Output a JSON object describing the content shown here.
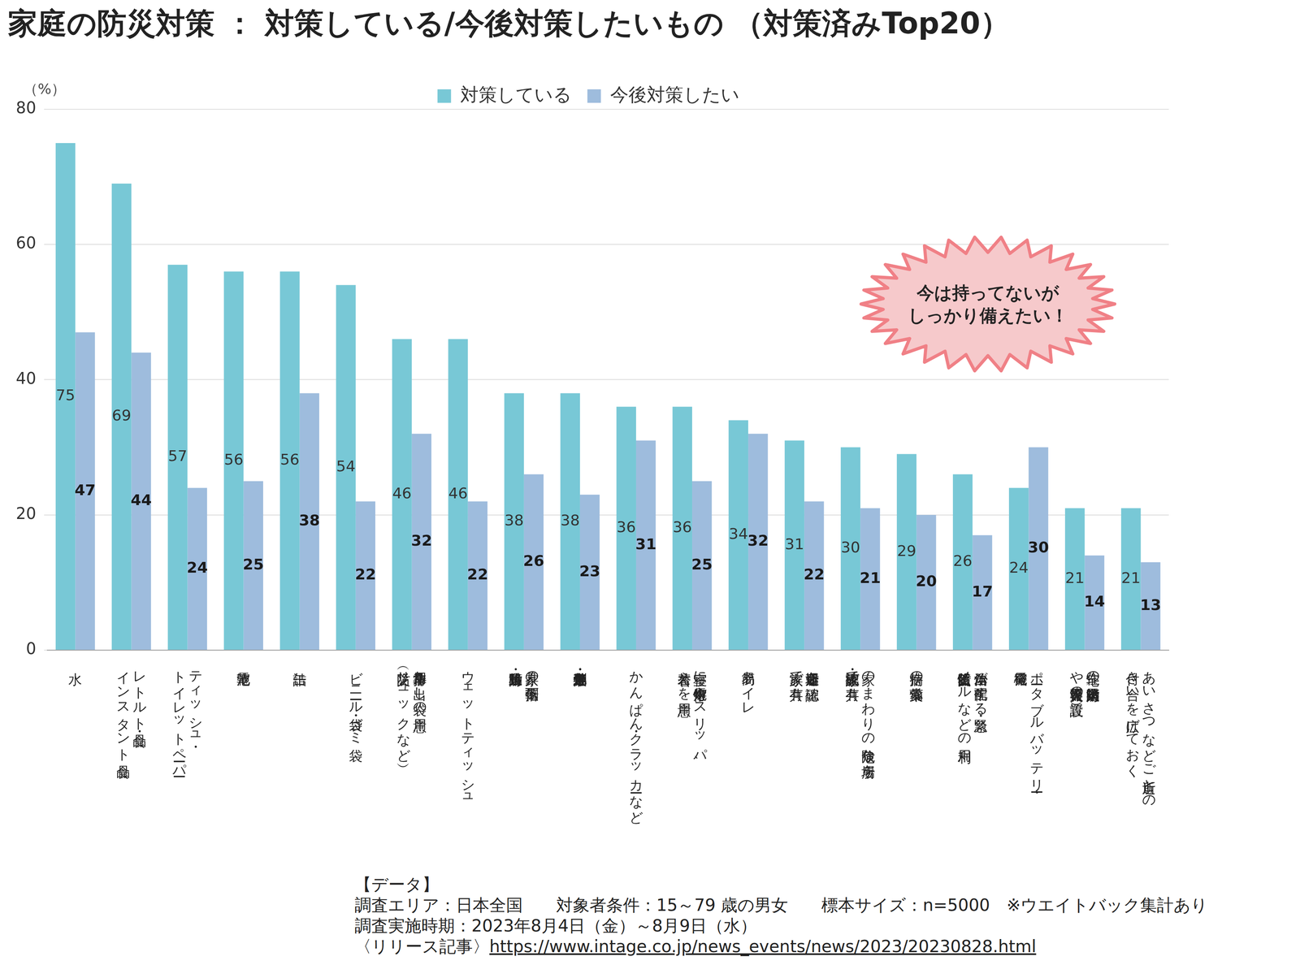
{
  "chart_data": {
    "type": "bar",
    "title": "家庭の防災対策 ： 対策している/今後対策したいもの （対策済みTop20）",
    "y_label": "（%）",
    "categories": [
      "水",
      [
        "レトルト食品・",
        "インスタント食品"
      ],
      [
        "ティッシュ・",
        "トイレットペーパー"
      ],
      "乾電池",
      "缶詰",
      "ビニール袋・ゴミ袋",
      [
        "非常用持ち出し袋の用意",
        "（防災リュックなど）"
      ],
      "ウェットティッシュ",
      [
        "家具の転倒・落下",
        "・移動防止対策"
      ],
      "消毒液・絆創膏・包帯",
      "かんぱん・クラッカーなど",
      [
        "寝室に懐中電灯やスリッパ、",
        "着替えを用意"
      ],
      "簡易トイレ",
      [
        "避難場所を確認・",
        "家族で共有"
      ],
      [
        "家のまわりの危険な場所を",
        "確認・家族で共有"
      ],
      "持病の薬・常備薬",
      [
        "自治体が配信する緊急・",
        "防災情報メールなどの利用"
      ],
      [
        "ポータブルバッテリー・",
        "発電機"
      ],
      [
        "住宅の防火対策（消火器",
        "や火災警報器の設置）"
      ],
      [
        "あいさつなどご近所との",
        "付き合いを広げておく"
      ]
    ],
    "series": [
      {
        "name": "対策している",
        "color": "#78C8D6",
        "values": [
          75,
          69,
          57,
          56,
          56,
          54,
          46,
          46,
          38,
          38,
          36,
          36,
          34,
          31,
          30,
          29,
          26,
          24,
          21,
          21
        ]
      },
      {
        "name": "今後対策したい",
        "color": "#9EBCDD",
        "values": [
          47,
          44,
          24,
          25,
          38,
          22,
          32,
          22,
          26,
          23,
          31,
          25,
          32,
          22,
          21,
          20,
          17,
          30,
          14,
          13
        ]
      }
    ],
    "ylim": [
      0,
      80
    ],
    "yticks": [
      0,
      20,
      40,
      60,
      80
    ],
    "grid": true,
    "legend": "top",
    "data_labels": true,
    "annotation": [
      "今は持ってないが",
      "しっかり備えたい！"
    ],
    "notes": [
      "【データ】",
      "調査エリア：日本全国　　対象者条件：15～79 歳の男女　　標本サイズ：n=5000　※ウエイトバック集計あり",
      "調査実施時期：2023年8月4日（金）～8月9日（水）"
    ],
    "source": {
      "label": "〈リリース記事〉",
      "url": "https://www.intage.co.jp/news_events/news/2023/20230828.html"
    }
  }
}
